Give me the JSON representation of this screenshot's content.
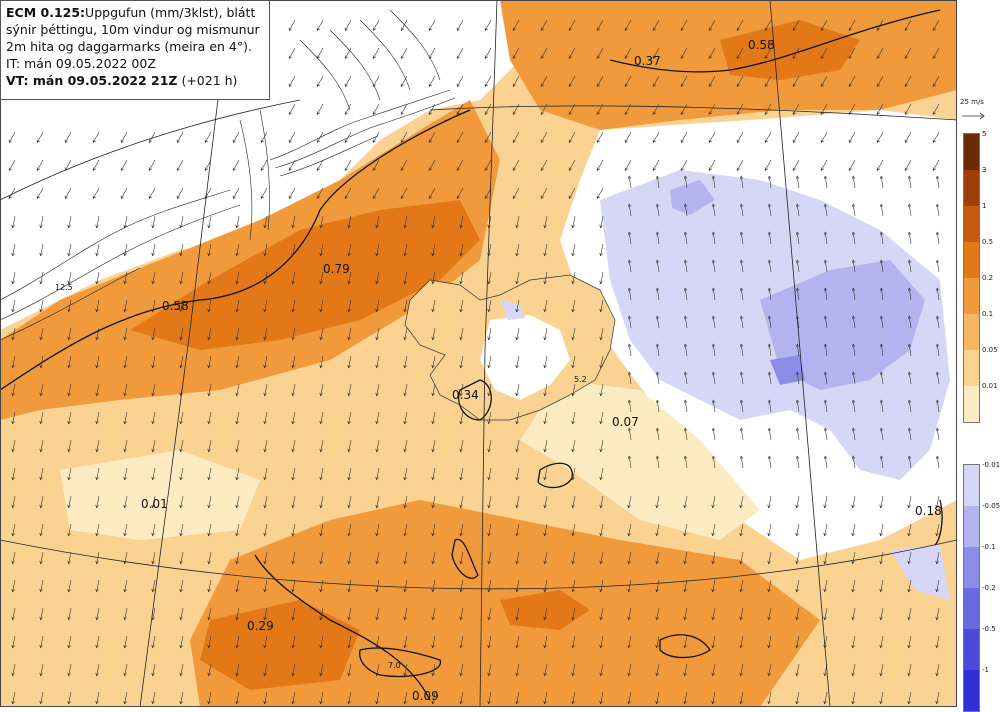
{
  "header": {
    "model": "ECM 0.125:",
    "description_line1": "Uppgufun (mm/3klst), blátt",
    "description_line2": "sýnir þéttingu, 10m vindur og mismunur",
    "description_line3": "2m hita og daggarmarks (meira en 4°).",
    "init_time": "IT: mán 09.05.2022 00Z",
    "valid_time": "VT: mán 09.05.2022 21Z",
    "lead_time": "(+021 h)"
  },
  "wind_scale": {
    "label": "25 m/s"
  },
  "legend_evaporation": {
    "ticks": [
      "5",
      "3",
      "1",
      "0.5",
      "0.2",
      "0.1",
      "0.05",
      "0.01"
    ],
    "colors": [
      "#6b2a06",
      "#9e3e08",
      "#c55a10",
      "#e27818",
      "#f09a3c",
      "#f6b765",
      "#fad393",
      "#fdecc3"
    ]
  },
  "legend_condensation": {
    "ticks": [
      "-0.01",
      "-0.05",
      "-0.1",
      "-0.2",
      "-0.5",
      "-1"
    ],
    "colors": [
      "#d6d6f6",
      "#b3b3ef",
      "#8c8ce6",
      "#6a6ae0",
      "#4a4adb",
      "#3030d6"
    ]
  },
  "map_labels": [
    {
      "text": "0.58"
    },
    {
      "text": "0.37"
    },
    {
      "text": "0.79"
    },
    {
      "text": "0.58"
    },
    {
      "text": "0.34"
    },
    {
      "text": "5.2"
    },
    {
      "text": "0.07"
    },
    {
      "text": "0.01"
    },
    {
      "text": "0.18"
    },
    {
      "text": "0.29"
    },
    {
      "text": "7.0"
    },
    {
      "text": "0.09"
    },
    {
      "text": "12.5"
    }
  ]
}
